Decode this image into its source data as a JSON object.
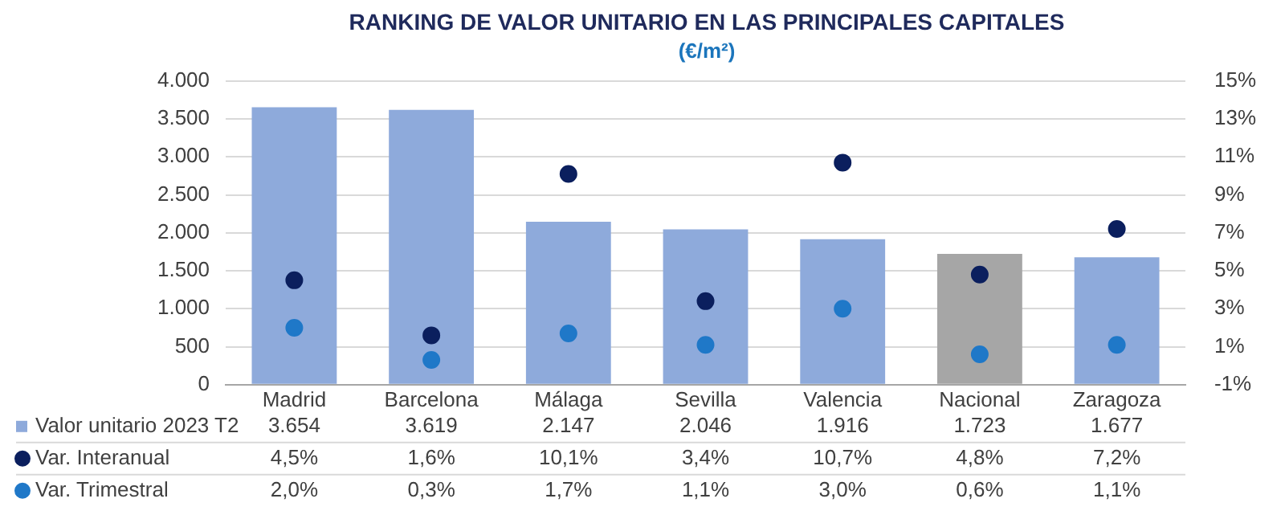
{
  "chart_data": {
    "type": "bar",
    "title": "RANKING DE VALOR UNITARIO EN LAS PRINCIPALES CAPITALES",
    "subtitle": "(€/m²)",
    "categories": [
      "Madrid",
      "Barcelona",
      "Málaga",
      "Sevilla",
      "Valencia",
      "Nacional",
      "Zaragoza"
    ],
    "series": [
      {
        "name": "Valor unitario 2023 T2",
        "color": "#8eaadb",
        "colors": [
          "#8eaadb",
          "#8eaadb",
          "#8eaadb",
          "#8eaadb",
          "#8eaadb",
          "#a6a6a6",
          "#8eaadb"
        ],
        "values": [
          3654,
          3619,
          2147,
          2046,
          1916,
          1723,
          1677
        ],
        "value_labels": [
          "3.654",
          "3.619",
          "2.147",
          "2.046",
          "1.916",
          "1.723",
          "1.677"
        ]
      },
      {
        "name": "Var. Interanual",
        "type": "scatter",
        "axis": "y2",
        "color": "#0b1f5e",
        "values": [
          4.5,
          1.6,
          10.1,
          3.4,
          10.7,
          4.8,
          7.2
        ],
        "value_labels": [
          "4,5%",
          "1,6%",
          "10,1%",
          "3,4%",
          "10,7%",
          "4,8%",
          "7,2%"
        ]
      },
      {
        "name": "Var. Trimestral",
        "type": "scatter",
        "axis": "y2",
        "color": "#1f78c8",
        "values": [
          2.0,
          0.3,
          1.7,
          1.1,
          3.0,
          0.6,
          1.1
        ],
        "value_labels": [
          "2,0%",
          "0,3%",
          "1,7%",
          "1,1%",
          "3,0%",
          "0,6%",
          "1,1%"
        ]
      }
    ],
    "ylim": [
      0,
      4000
    ],
    "yticks": [
      {
        "value": 0,
        "label": "0"
      },
      {
        "value": 500,
        "label": "500"
      },
      {
        "value": 1000,
        "label": "1.000"
      },
      {
        "value": 1500,
        "label": "1.500"
      },
      {
        "value": 2000,
        "label": "2.000"
      },
      {
        "value": 2500,
        "label": "2.500"
      },
      {
        "value": 3000,
        "label": "3.000"
      },
      {
        "value": 3500,
        "label": "3.500"
      },
      {
        "value": 4000,
        "label": "4.000"
      }
    ],
    "y2lim": [
      -1,
      15
    ],
    "y2ticks": [
      {
        "value": -1,
        "label": "-1%"
      },
      {
        "value": 1,
        "label": "1%"
      },
      {
        "value": 3,
        "label": "3%"
      },
      {
        "value": 5,
        "label": "5%"
      },
      {
        "value": 7,
        "label": "7%"
      },
      {
        "value": 9,
        "label": "9%"
      },
      {
        "value": 11,
        "label": "11%"
      },
      {
        "value": 13,
        "label": "13%"
      },
      {
        "value": 15,
        "label": "15%"
      }
    ],
    "grid": "y",
    "legend": "bottom",
    "marker": "circle"
  }
}
